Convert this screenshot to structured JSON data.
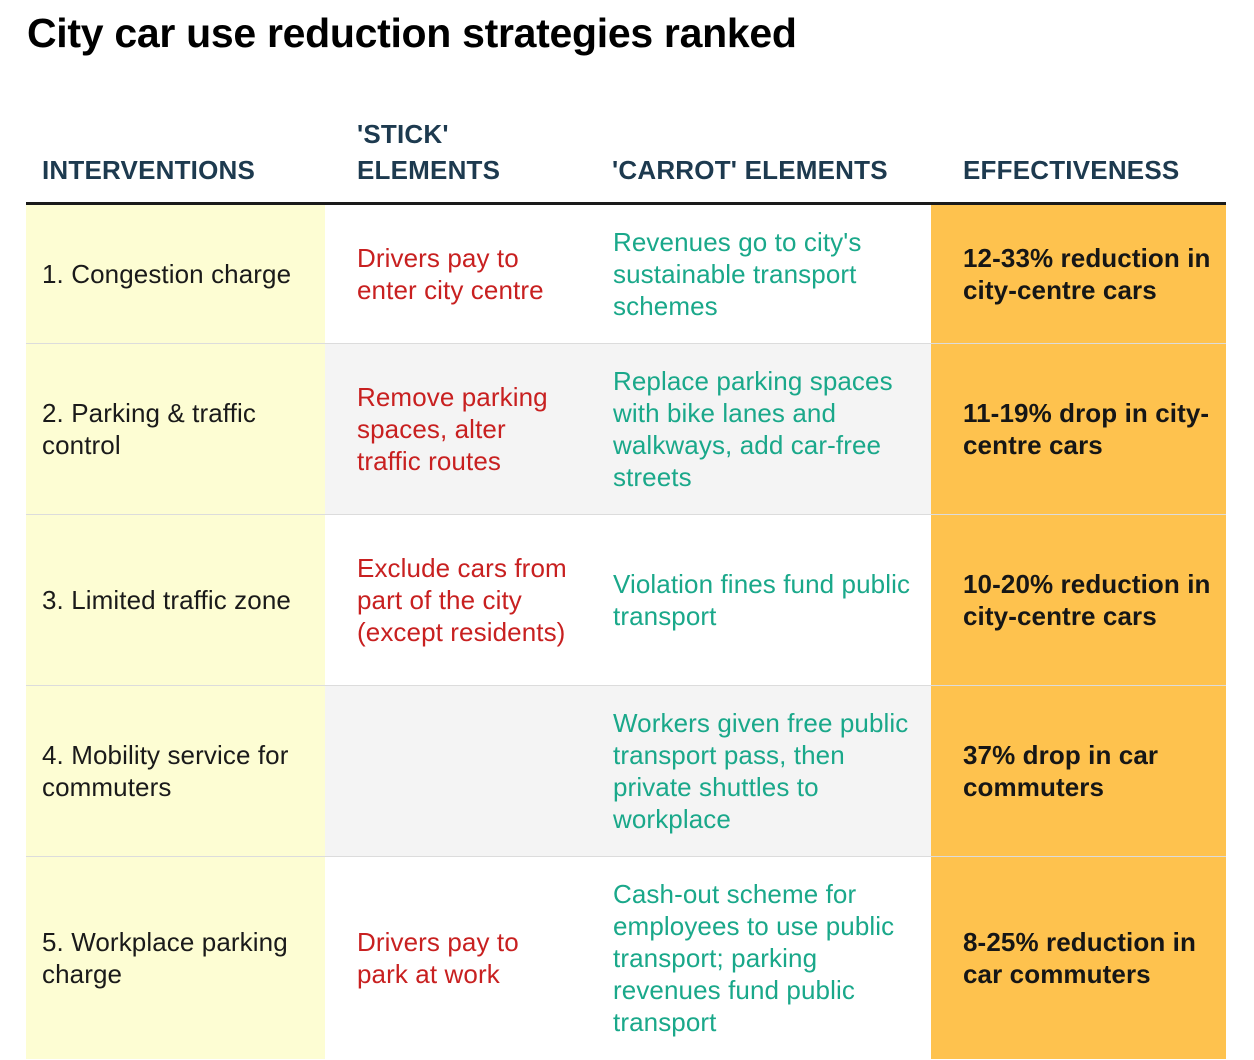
{
  "title": "City car use reduction strategies ranked",
  "headers": {
    "interventions": "INTERVENTIONS",
    "stick_line1": "'STICK'",
    "stick_line2": "ELEMENTS",
    "carrot": "'CARROT' ELEMENTS",
    "effectiveness": "EFFECTIVENESS"
  },
  "colors": {
    "header_text": "#1d3a4f",
    "intervention_bg": "#fdfdd3",
    "stick_text": "#c82020",
    "carrot_text": "#1aa88a",
    "effectiveness_bg": "#fec24e",
    "shaded_row_bg": "#f4f4f4"
  },
  "rows": [
    {
      "intervention": "1. Congestion charge",
      "stick": "Drivers pay to enter city centre",
      "carrot": "Revenues go to city's sustainable transport schemes",
      "effectiveness": "12-33% reduction in city-centre cars"
    },
    {
      "intervention": "2. Parking & traffic control",
      "stick": "Remove parking spaces, alter traffic routes",
      "carrot": "Replace parking spaces with bike lanes and walkways, add car-free streets",
      "effectiveness": "11-19% drop in city-centre cars"
    },
    {
      "intervention": "3. Limited traffic zone",
      "stick": "Exclude cars from part of the city (except residents)",
      "carrot": "Violation fines fund public transport",
      "effectiveness": "10-20% reduction in city-centre cars"
    },
    {
      "intervention": "4. Mobility service for commuters",
      "stick": "",
      "carrot": "Workers given free public transport pass, then private shuttles to workplace",
      "effectiveness": "37% drop in car commuters"
    },
    {
      "intervention": "5. Workplace parking charge",
      "stick": "Drivers pay to park at work",
      "carrot": "Cash-out scheme for employees to use public transport; parking revenues fund public transport",
      "effectiveness": "8-25% reduction in car commuters"
    }
  ]
}
